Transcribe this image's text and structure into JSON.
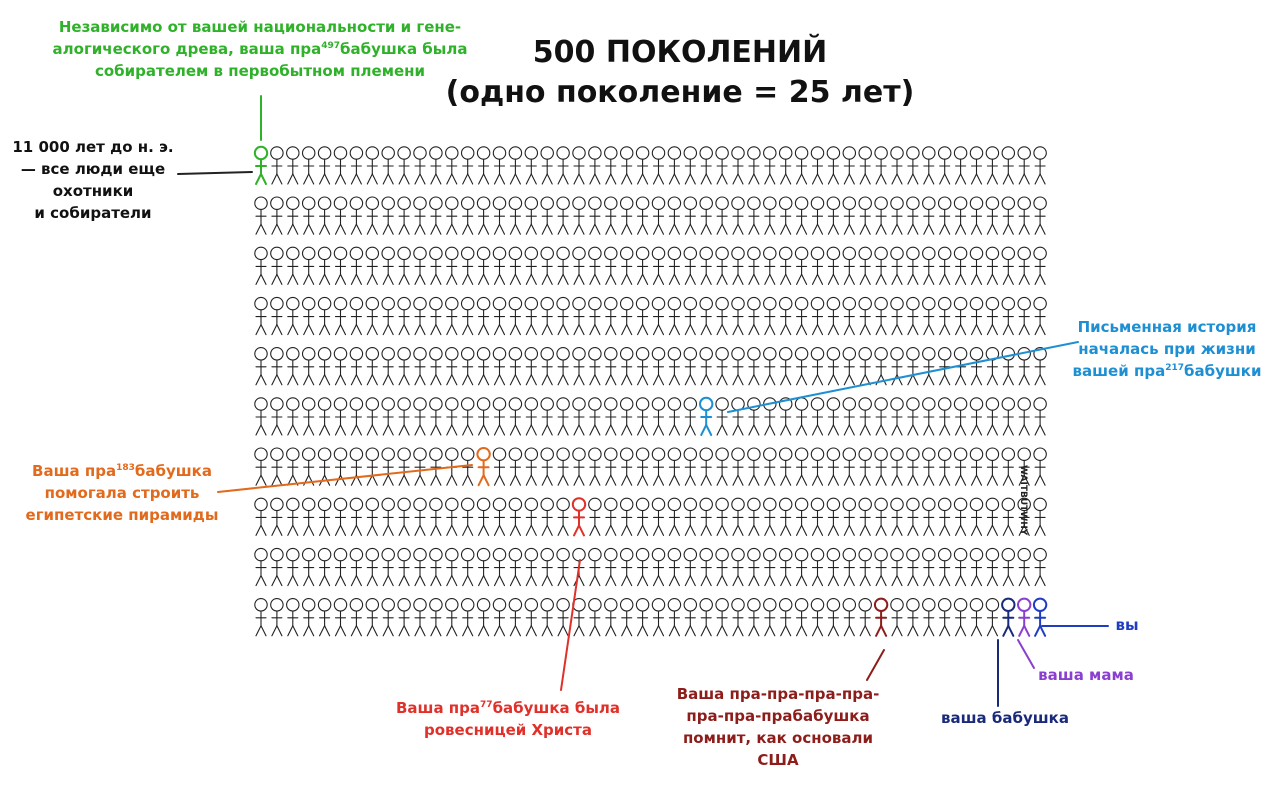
{
  "title": {
    "line1": "500 ПОКОЛЕНИЙ",
    "line2": "(одно поколение = 25 лет)"
  },
  "grid": {
    "rows": 10,
    "per_row": 50,
    "total": 500
  },
  "colors": {
    "figure": "#222222",
    "green": "#2fb12a",
    "blue": "#1d8fd2",
    "orange": "#e26a1d",
    "red": "#e0302a",
    "brown": "#8c1d1a",
    "navy": "#1a2a7a",
    "purple": "#8a3fd0",
    "you": "#1f3dc4"
  },
  "annotations": {
    "green": {
      "line1": "Независимо от вашей национальности и гене-",
      "line2a": "алогического древа, ваша пра",
      "sup": "497",
      "line2b": "бабушка была",
      "line3": "собирателем в первобытном племени"
    },
    "hunters": {
      "line1": "11 000 лет до н. э.",
      "line2": "— все люди еще",
      "line3": "охотники",
      "line4": "и собиратели"
    },
    "written_history": {
      "line1": "Письменная история",
      "line2": "началась при жизни",
      "line3a": "вашей пра",
      "sup": "217",
      "line3b": "бабушки"
    },
    "pyramids": {
      "line1a": "Ваша пра",
      "sup": "183",
      "line1b": "бабушка",
      "line2": "помогала строить",
      "line3": "египетские пирамиды"
    },
    "christ": {
      "line1a": "Ваша пра",
      "sup": "77",
      "line1b": "бабушка была",
      "line2": "ровесницей Христа"
    },
    "usa": {
      "line1": "Ваша пра-пра-пра-пра-",
      "line2": "пра-пра-прабабушка",
      "line3": "помнит, как основали",
      "line4": "США"
    },
    "grandma": "ваша бабушка",
    "mom": "ваша мама",
    "you": "вы"
  },
  "signature": "WAITBUTWHY"
}
